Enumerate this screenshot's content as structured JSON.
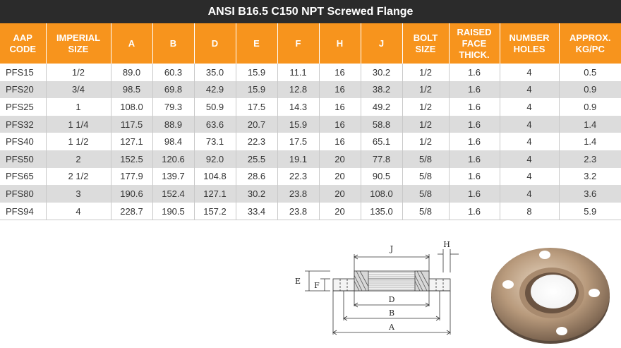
{
  "title": "ANSI B16.5 C150 NPT Screwed Flange",
  "headers": [
    "AAP\nCODE",
    "IMPERIAL\nSIZE",
    "A",
    "B",
    "D",
    "E",
    "F",
    "H",
    "J",
    "BOLT\nSIZE",
    "RAISED\nFACE\nTHICK.",
    "NUMBER\nHOLES",
    "APPROX.\nKG/PC"
  ],
  "rows": [
    [
      "PFS15",
      "1/2",
      "89.0",
      "60.3",
      "35.0",
      "15.9",
      "11.1",
      "16",
      "30.2",
      "1/2",
      "1.6",
      "4",
      "0.5"
    ],
    [
      "PFS20",
      "3/4",
      "98.5",
      "69.8",
      "42.9",
      "15.9",
      "12.8",
      "16",
      "38.2",
      "1/2",
      "1.6",
      "4",
      "0.9"
    ],
    [
      "PFS25",
      "1",
      "108.0",
      "79.3",
      "50.9",
      "17.5",
      "14.3",
      "16",
      "49.2",
      "1/2",
      "1.6",
      "4",
      "0.9"
    ],
    [
      "PFS32",
      "1 1/4",
      "117.5",
      "88.9",
      "63.6",
      "20.7",
      "15.9",
      "16",
      "58.8",
      "1/2",
      "1.6",
      "4",
      "1.4"
    ],
    [
      "PFS40",
      "1 1/2",
      "127.1",
      "98.4",
      "73.1",
      "22.3",
      "17.5",
      "16",
      "65.1",
      "1/2",
      "1.6",
      "4",
      "1.4"
    ],
    [
      "PFS50",
      "2",
      "152.5",
      "120.6",
      "92.0",
      "25.5",
      "19.1",
      "20",
      "77.8",
      "5/8",
      "1.6",
      "4",
      "2.3"
    ],
    [
      "PFS65",
      "2 1/2",
      "177.9",
      "139.7",
      "104.8",
      "28.6",
      "22.3",
      "20",
      "90.5",
      "5/8",
      "1.6",
      "4",
      "3.2"
    ],
    [
      "PFS80",
      "3",
      "190.6",
      "152.4",
      "127.1",
      "30.2",
      "23.8",
      "20",
      "108.0",
      "5/8",
      "1.6",
      "4",
      "3.6"
    ],
    [
      "PFS94",
      "4",
      "228.7",
      "190.5",
      "157.2",
      "33.4",
      "23.8",
      "20",
      "135.0",
      "5/8",
      "1.6",
      "8",
      "5.9"
    ]
  ],
  "diagram": {
    "labels": {
      "j": "J",
      "h": "H",
      "e": "E",
      "f": "F",
      "d": "D",
      "b": "B",
      "a": "A"
    }
  },
  "colors": {
    "header_bg": "#f7941d",
    "title_bg": "#2b2b2b",
    "row_alt": "#dcdcdc"
  }
}
